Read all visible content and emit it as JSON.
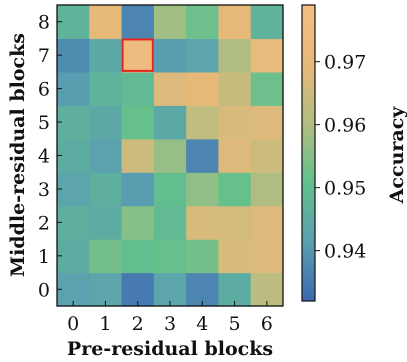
{
  "chart_data": {
    "type": "heatmap",
    "xlabel": "Pre-residual blocks",
    "ylabel": "Middle-residual blocks",
    "colorbar_label": "Accuracy",
    "x_categories": [
      "0",
      "1",
      "2",
      "3",
      "4",
      "5",
      "6"
    ],
    "y_categories": [
      "0",
      "1",
      "2",
      "3",
      "4",
      "5",
      "6",
      "7",
      "8"
    ],
    "values": [
      [
        0.942,
        0.943,
        0.935,
        0.943,
        0.937,
        0.945,
        0.962
      ],
      [
        0.945,
        0.953,
        0.95,
        0.951,
        0.953,
        0.967,
        0.968
      ],
      [
        0.946,
        0.945,
        0.955,
        0.949,
        0.967,
        0.966,
        0.968
      ],
      [
        0.943,
        0.946,
        0.941,
        0.95,
        0.956,
        0.951,
        0.96
      ],
      [
        0.945,
        0.942,
        0.965,
        0.957,
        0.937,
        0.968,
        0.965
      ],
      [
        0.946,
        0.944,
        0.951,
        0.944,
        0.963,
        0.967,
        0.968
      ],
      [
        0.941,
        0.947,
        0.949,
        0.968,
        0.97,
        0.964,
        0.952
      ],
      [
        0.938,
        0.944,
        0.974,
        0.941,
        0.943,
        0.96,
        0.971
      ],
      [
        0.947,
        0.97,
        0.937,
        0.958,
        0.952,
        0.97,
        0.947
      ]
    ],
    "highlighted_cell": {
      "x": "2",
      "y": "7",
      "color": "#e8241e"
    },
    "colorbar_range": [
      0.932,
      0.979
    ],
    "colorbar_ticks": [
      "0.94",
      "0.95",
      "0.96",
      "0.97"
    ],
    "colormap": [
      "#3d68b1",
      "#5a9fb0",
      "#63c08c",
      "#b2bd82",
      "#e6b979",
      "#f5be84"
    ]
  }
}
